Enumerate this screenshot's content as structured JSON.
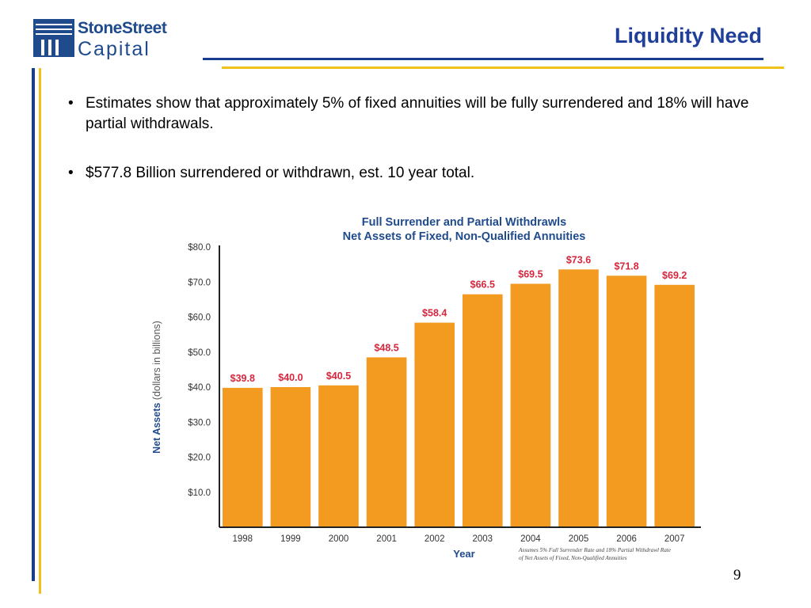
{
  "header": {
    "logo_top": "StoneStreet",
    "logo_bottom": "Capital",
    "title": "Liquidity Need"
  },
  "bullets": [
    "Estimates show that approximately 5% of fixed annuities will be fully surrendered and 18% will have partial withdrawals.",
    "$577.8 Billion surrendered or withdrawn, est. 10 year total."
  ],
  "bullet_glyph": "•",
  "page_number": "9",
  "colors": {
    "brand_blue": "#1f4a8c",
    "title_blue": "#1f3f9a",
    "gold": "#f0c11a",
    "bar": "#f39a21",
    "value_label": "#d7263d"
  },
  "chart_data": {
    "type": "bar",
    "title": "Full Surrender and Partial Withdrawls",
    "subtitle": "Net Assets of Fixed, Non-Qualified Annuities",
    "xlabel": "Year",
    "ylabel_bold": "Net Assets",
    "ylabel_rest": " (dollars in billions)",
    "categories": [
      "1998",
      "1999",
      "2000",
      "2001",
      "2002",
      "2003",
      "2004",
      "2005",
      "2006",
      "2007"
    ],
    "values": [
      39.8,
      40.0,
      40.5,
      48.5,
      58.4,
      66.5,
      69.5,
      73.6,
      71.8,
      69.2
    ],
    "value_labels": [
      "$39.8",
      "$40.0",
      "$40.5",
      "$48.5",
      "$58.4",
      "$66.5",
      "$69.5",
      "$73.6",
      "$71.8",
      "$69.2"
    ],
    "ylim": [
      0,
      80
    ],
    "yticks": [
      10,
      20,
      30,
      40,
      50,
      60,
      70,
      80
    ],
    "ytick_labels": [
      "$10.0",
      "$20.0",
      "$30.0",
      "$40.0",
      "$50.0",
      "$60.0",
      "$70.0",
      "$80.0"
    ],
    "footnote": [
      "Assumes 5% Full Surrender Rate and 18% Partial Withdrawl Rate",
      "of Net Assets of Fixed, Non-Qualified Annuities"
    ],
    "grid": false,
    "legend": "none"
  }
}
